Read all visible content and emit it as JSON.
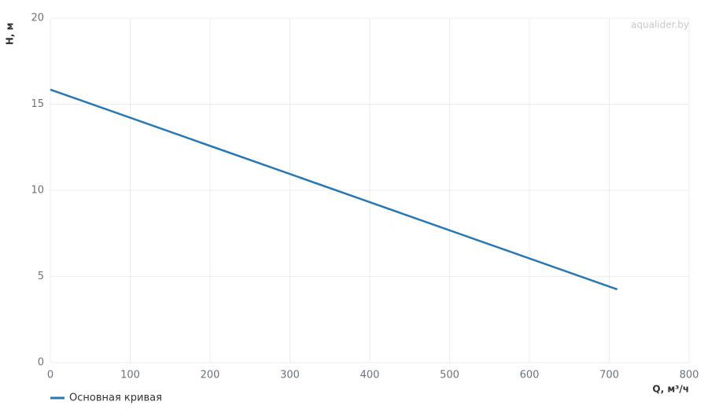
{
  "chart_data": {
    "type": "line",
    "watermark": "aqualider.by",
    "x_label": "Q, м³/ч",
    "y_label": "H, м",
    "x": [
      0,
      710
    ],
    "series": [
      {
        "name": "Основная кривая",
        "color": "#2878b5",
        "values": [
          15.85,
          4.25
        ]
      }
    ],
    "xlim": [
      0,
      800
    ],
    "xticks": [
      0,
      100,
      200,
      300,
      400,
      500,
      600,
      700,
      800
    ],
    "ylim": [
      0,
      20
    ],
    "yticks": [
      0,
      5,
      10,
      15,
      20
    ],
    "grid": true
  }
}
